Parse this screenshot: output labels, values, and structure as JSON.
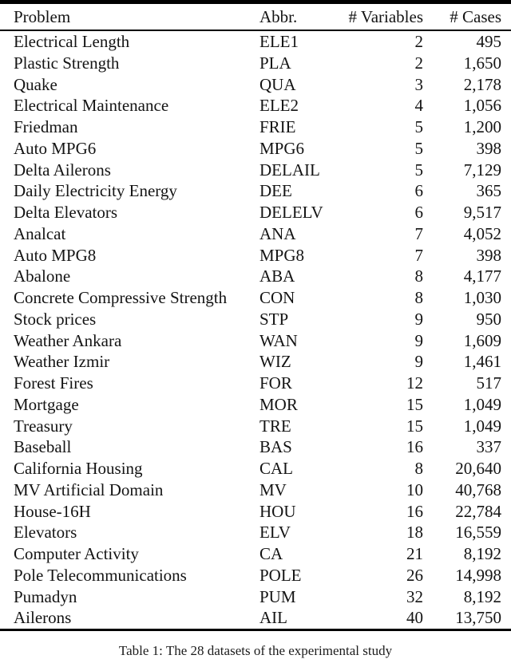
{
  "table": {
    "columns": [
      "Problem",
      "Abbr.",
      "# Variables",
      "# Cases"
    ],
    "rows": [
      {
        "problem": "Electrical Length",
        "abbr": "ELE1",
        "variables": "2",
        "cases": "495"
      },
      {
        "problem": "Plastic Strength",
        "abbr": "PLA",
        "variables": "2",
        "cases": "1,650"
      },
      {
        "problem": "Quake",
        "abbr": "QUA",
        "variables": "3",
        "cases": "2,178"
      },
      {
        "problem": "Electrical Maintenance",
        "abbr": "ELE2",
        "variables": "4",
        "cases": "1,056"
      },
      {
        "problem": "Friedman",
        "abbr": "FRIE",
        "variables": "5",
        "cases": "1,200"
      },
      {
        "problem": "Auto MPG6",
        "abbr": "MPG6",
        "variables": "5",
        "cases": "398"
      },
      {
        "problem": "Delta Ailerons",
        "abbr": "DELAIL",
        "variables": "5",
        "cases": "7,129"
      },
      {
        "problem": "Daily Electricity Energy",
        "abbr": "DEE",
        "variables": "6",
        "cases": "365"
      },
      {
        "problem": "Delta Elevators",
        "abbr": "DELELV",
        "variables": "6",
        "cases": "9,517"
      },
      {
        "problem": "Analcat",
        "abbr": "ANA",
        "variables": "7",
        "cases": "4,052"
      },
      {
        "problem": "Auto MPG8",
        "abbr": "MPG8",
        "variables": "7",
        "cases": "398"
      },
      {
        "problem": "Abalone",
        "abbr": "ABA",
        "variables": "8",
        "cases": "4,177"
      },
      {
        "problem": "Concrete Compressive Strength",
        "abbr": "CON",
        "variables": "8",
        "cases": "1,030"
      },
      {
        "problem": "Stock prices",
        "abbr": "STP",
        "variables": "9",
        "cases": "950"
      },
      {
        "problem": "Weather Ankara",
        "abbr": "WAN",
        "variables": "9",
        "cases": "1,609"
      },
      {
        "problem": "Weather Izmir",
        "abbr": "WIZ",
        "variables": "9",
        "cases": "1,461"
      },
      {
        "problem": "Forest Fires",
        "abbr": "FOR",
        "variables": "12",
        "cases": "517"
      },
      {
        "problem": "Mortgage",
        "abbr": "MOR",
        "variables": "15",
        "cases": "1,049"
      },
      {
        "problem": "Treasury",
        "abbr": "TRE",
        "variables": "15",
        "cases": "1,049"
      },
      {
        "problem": "Baseball",
        "abbr": "BAS",
        "variables": "16",
        "cases": "337"
      },
      {
        "problem": "California Housing",
        "abbr": "CAL",
        "variables": "8",
        "cases": "20,640"
      },
      {
        "problem": "MV Artificial Domain",
        "abbr": "MV",
        "variables": "10",
        "cases": "40,768"
      },
      {
        "problem": "House-16H",
        "abbr": "HOU",
        "variables": "16",
        "cases": "22,784"
      },
      {
        "problem": "Elevators",
        "abbr": "ELV",
        "variables": "18",
        "cases": "16,559"
      },
      {
        "problem": "Computer Activity",
        "abbr": "CA",
        "variables": "21",
        "cases": "8,192"
      },
      {
        "problem": "Pole Telecommunications",
        "abbr": "POLE",
        "variables": "26",
        "cases": "14,998"
      },
      {
        "problem": "Pumadyn",
        "abbr": "PUM",
        "variables": "32",
        "cases": "8,192"
      },
      {
        "problem": "Ailerons",
        "abbr": "AIL",
        "variables": "40",
        "cases": "13,750"
      }
    ]
  },
  "caption": {
    "text": "Table 1: The 28 datasets of the experimental study"
  },
  "colors": {
    "text": "#141414",
    "rule": "#000000",
    "background": "#ffffff"
  }
}
